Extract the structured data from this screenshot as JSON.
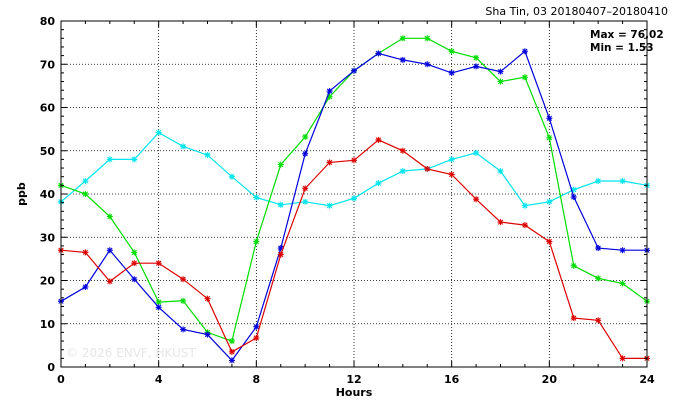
{
  "chart_data": {
    "type": "line",
    "title": "Sha Tin, 03 20180407–20180410",
    "xlabel": "Hours",
    "ylabel": "ppb",
    "xlim": [
      0,
      24
    ],
    "ylim": [
      0,
      80
    ],
    "xticks": [
      0,
      4,
      8,
      12,
      16,
      20,
      24
    ],
    "yticks": [
      0,
      10,
      20,
      30,
      40,
      50,
      60,
      70,
      80
    ],
    "grid": true,
    "stats": {
      "max": "Max = 76.02",
      "min": "Min =  1.53"
    },
    "watermark": "© 2026  ENVF, HKUST",
    "x": [
      0,
      1,
      2,
      3,
      4,
      5,
      6,
      7,
      8,
      9,
      10,
      11,
      12,
      13,
      14,
      15,
      16,
      17,
      18,
      19,
      20,
      21,
      22,
      23,
      24
    ],
    "series": [
      {
        "color": "#00e5ee",
        "values": [
          38.2,
          43,
          48,
          48,
          54.2,
          51,
          49,
          44,
          39.2,
          37.5,
          38.2,
          37.3,
          39,
          42.5,
          45.3,
          45.8,
          48,
          49.5,
          45.3,
          37.3,
          38.2,
          41,
          43,
          43,
          42
        ]
      },
      {
        "color": "#00dd00",
        "values": [
          42,
          40,
          34.8,
          26.5,
          15,
          15.3,
          8,
          6,
          29,
          46.8,
          53.2,
          62.5,
          68.5,
          72.5,
          76,
          76,
          73,
          71.5,
          66,
          67,
          53,
          23.4,
          20.5,
          19.3,
          15.2
        ]
      },
      {
        "color": "#0000dd",
        "values": [
          15.2,
          18.5,
          27,
          20.3,
          13.8,
          8.7,
          7.5,
          1.53,
          9.3,
          27.5,
          49.3,
          63.8,
          68.5,
          72.5,
          71,
          70,
          68,
          69.5,
          68.3,
          73,
          57.5,
          39.3,
          27.5,
          27,
          27
        ]
      },
      {
        "color": "#dd0000",
        "values": [
          27,
          26.5,
          19.8,
          24,
          24,
          20.3,
          15.8,
          3.5,
          6.7,
          26,
          41.3,
          47.3,
          47.8,
          52.5,
          50,
          45.8,
          44.5,
          38.8,
          33.5,
          32.8,
          29,
          11.3,
          10.8,
          2,
          2
        ]
      }
    ]
  }
}
